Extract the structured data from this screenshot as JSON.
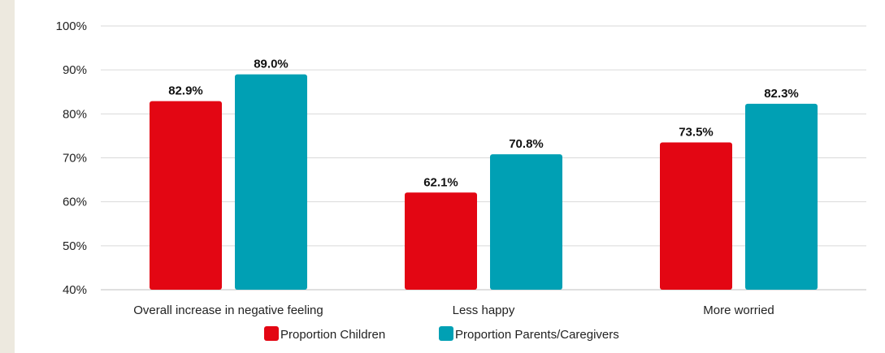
{
  "chart_data": {
    "type": "bar",
    "categories": [
      "Overall increase in negative feeling",
      "Less happy",
      "More worried"
    ],
    "series": [
      {
        "name": "Proportion Children",
        "values": [
          82.9,
          62.1,
          73.5
        ],
        "labels": [
          "82.9%",
          "62.1%",
          "73.5%"
        ],
        "color": "#e30613"
      },
      {
        "name": "Proportion Parents/Caregivers",
        "values": [
          89.0,
          70.8,
          82.3
        ],
        "labels": [
          "89.0%",
          "70.8%",
          "82.3%"
        ],
        "color": "#00a0b4"
      }
    ],
    "ylim": [
      40,
      100
    ],
    "yticks": [
      40,
      50,
      60,
      70,
      80,
      90,
      100
    ],
    "ytick_labels": [
      "40%",
      "50%",
      "60%",
      "70%",
      "80%",
      "90%",
      "100%"
    ],
    "grid": true,
    "legend": "bottom"
  }
}
